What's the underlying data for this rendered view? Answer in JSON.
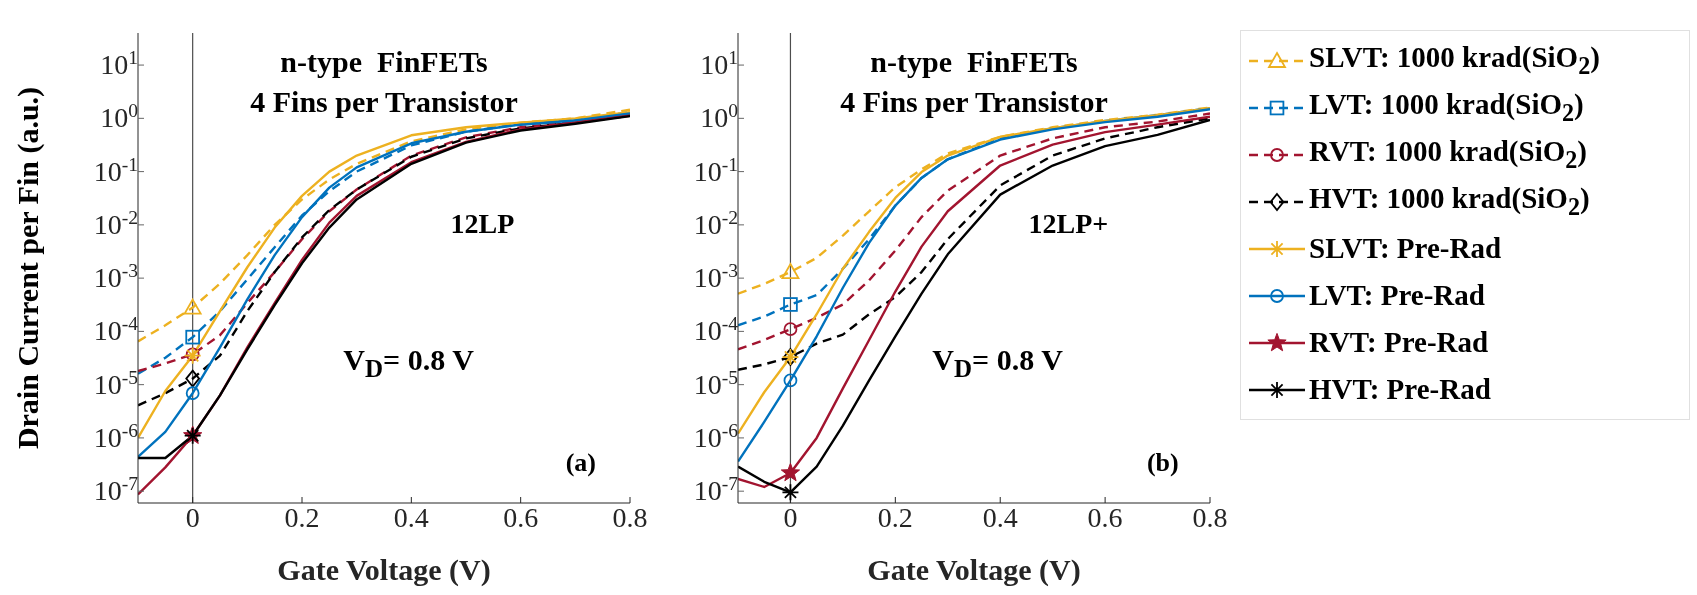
{
  "chart_data": [
    {
      "type": "line",
      "xlabel": "Gate Voltage (V)",
      "ylabel": "Drain Current per Fin (a.u.)",
      "log": "y",
      "legend": "right",
      "annotations": [
        "n-type  FinFETs",
        "4 Fins per Transistor",
        "12LP",
        "V$_{D}$= 0.8 V",
        "(a)"
      ],
      "x": [
        -0.1,
        -0.05,
        0,
        0.05,
        0.1,
        0.15,
        0.2,
        0.25,
        0.3,
        0.4,
        0.5,
        0.6,
        0.7,
        0.8
      ],
      "xlim": [
        -0.1,
        0.8
      ],
      "xticks": [
        0,
        0.2,
        0.4,
        0.6,
        0.8
      ],
      "ylim": [
        6e-08,
        40
      ],
      "yticks": [
        {
          "value": 1e-07,
          "label": "10$^{-7}$"
        },
        {
          "value": 1e-06,
          "label": "10$^{-6}$"
        },
        {
          "value": 1e-05,
          "label": "10$^{-5}$"
        },
        {
          "value": 0.0001,
          "label": "10$^{-4}$"
        },
        {
          "value": 0.001,
          "label": "10$^{-3}$"
        },
        {
          "value": 0.01,
          "label": "10$^{-2}$"
        },
        {
          "value": 0.1,
          "label": "10$^{-1}$"
        },
        {
          "value": 1,
          "label": "10$^{0}$"
        },
        {
          "value": 10,
          "label": "10$^{1}$"
        }
      ],
      "ref_lines": [
        {
          "axis": "x",
          "value": 0,
          "color": "#4d4d4d"
        }
      ],
      "series": [
        {
          "name": "SLVT: 1000 krad(SiO$_{2}$)",
          "color": "#edb120",
          "line_style": "dashed",
          "values": [
            6.5e-05,
            0.00013,
            0.00028,
            0.00079,
            0.0027,
            0.01,
            0.03,
            0.071,
            0.14,
            0.37,
            0.62,
            0.83,
            1.0,
            1.45
          ]
        },
        {
          "name": "LVT: 1000 krad(SiO$_{2}$)",
          "color": "#0072bd",
          "line_style": "dashed",
          "values": [
            1.6e-05,
            3.2e-05,
            7.8e-05,
            0.00024,
            0.00095,
            0.0038,
            0.015,
            0.043,
            0.1,
            0.31,
            0.56,
            0.78,
            0.95,
            1.3
          ]
        },
        {
          "name": "RVT: 1000 krad(SiO$_{2}$)",
          "color": "#a2142f",
          "line_style": "dashed",
          "values": [
            1.8e-05,
            2.5e-05,
            3.7e-05,
            8.5e-05,
            0.00034,
            0.0013,
            0.0054,
            0.018,
            0.046,
            0.2,
            0.44,
            0.68,
            0.87,
            1.17
          ]
        },
        {
          "name": "HVT: 1000 krad(SiO$_{2}$)",
          "color": "#000000",
          "line_style": "dashed",
          "values": [
            4.1e-06,
            6.9e-06,
            1.3e-05,
            3.5e-05,
            0.00024,
            0.0013,
            0.0058,
            0.019,
            0.046,
            0.19,
            0.42,
            0.65,
            0.83,
            1.12
          ]
        },
        {
          "name": "SLVT: Pre-Rad",
          "color": "#edb120",
          "line_style": "solid",
          "values": [
            1e-06,
            7.6e-06,
            3.5e-05,
            0.00024,
            0.0016,
            0.0089,
            0.035,
            0.1,
            0.2,
            0.48,
            0.68,
            0.83,
            1.0,
            1.3
          ]
        },
        {
          "name": "LVT: Pre-Rad",
          "color": "#0072bd",
          "line_style": "solid",
          "values": [
            4.4e-07,
            1.3e-06,
            6.9e-06,
            5e-05,
            0.0004,
            0.0027,
            0.014,
            0.05,
            0.12,
            0.34,
            0.56,
            0.76,
            0.91,
            1.23
          ]
        },
        {
          "name": "RVT: Pre-Rad",
          "color": "#a2142f",
          "line_style": "solid",
          "values": [
            8.7e-08,
            2.8e-07,
            1.1e-06,
            6.3e-06,
            5e-05,
            0.00034,
            0.0022,
            0.011,
            0.035,
            0.15,
            0.36,
            0.62,
            0.83,
            1.12
          ]
        },
        {
          "name": "HVT: Pre-Rad",
          "color": "#000000",
          "line_style": "solid",
          "values": [
            4.2e-07,
            4.2e-07,
            1.1e-06,
            6.3e-06,
            4.6e-05,
            0.00031,
            0.0019,
            0.0089,
            0.03,
            0.14,
            0.35,
            0.59,
            0.79,
            1.1
          ]
        },
        {
          "type": "scatter",
          "color": "#edb120",
          "marker": "triangle",
          "values": [
            null,
            null,
            0.00028,
            null,
            null,
            null,
            null,
            null,
            null,
            null,
            null,
            null,
            null,
            null
          ]
        },
        {
          "type": "scatter",
          "color": "#0072bd",
          "marker": "square",
          "values": [
            null,
            null,
            7.8e-05,
            null,
            null,
            null,
            null,
            null,
            null,
            null,
            null,
            null,
            null,
            null
          ]
        },
        {
          "type": "scatter",
          "color": "#a2142f",
          "marker": "circle",
          "values": [
            null,
            null,
            3.7e-05,
            null,
            null,
            null,
            null,
            null,
            null,
            null,
            null,
            null,
            null,
            null
          ]
        },
        {
          "type": "scatter",
          "color": "#000000",
          "marker": "diamond",
          "values": [
            null,
            null,
            1.3e-05,
            null,
            null,
            null,
            null,
            null,
            null,
            null,
            null,
            null,
            null,
            null
          ]
        },
        {
          "type": "scatter",
          "color": "#edb120",
          "marker": "cross",
          "values": [
            null,
            null,
            3.5e-05,
            null,
            null,
            null,
            null,
            null,
            null,
            null,
            null,
            null,
            null,
            null
          ]
        },
        {
          "type": "scatter",
          "color": "#0072bd",
          "marker": "circle",
          "values": [
            null,
            null,
            6.9e-06,
            null,
            null,
            null,
            null,
            null,
            null,
            null,
            null,
            null,
            null,
            null
          ]
        },
        {
          "type": "scatter",
          "color": "#a2142f",
          "marker": "star",
          "values": [
            null,
            null,
            1.1e-06,
            null,
            null,
            null,
            null,
            null,
            null,
            null,
            null,
            null,
            null,
            null
          ]
        },
        {
          "type": "scatter",
          "color": "#000000",
          "marker": "cross",
          "values": [
            null,
            null,
            1.1e-06,
            null,
            null,
            null,
            null,
            null,
            null,
            null,
            null,
            null,
            null,
            null
          ]
        }
      ]
    },
    {
      "type": "line",
      "xlabel": "Gate Voltage (V)",
      "log": "y",
      "annotations": [
        "n-type  FinFETs",
        "4 Fins per Transistor",
        "12LP+",
        "V$_{D}$= 0.8 V",
        "(b)"
      ],
      "x": [
        -0.1,
        -0.05,
        0,
        0.05,
        0.1,
        0.15,
        0.2,
        0.25,
        0.3,
        0.4,
        0.5,
        0.6,
        0.7,
        0.8
      ],
      "xlim": [
        -0.1,
        0.8
      ],
      "xticks": [
        0,
        0.2,
        0.4,
        0.6,
        0.8
      ],
      "ylim": [
        6e-08,
        40
      ],
      "yticks": [
        {
          "value": 1e-07,
          "label": "10$^{-7}$"
        },
        {
          "value": 1e-06,
          "label": "10$^{-6}$"
        },
        {
          "value": 1e-05,
          "label": "10$^{-5}$"
        },
        {
          "value": 0.0001,
          "label": "10$^{-4}$"
        },
        {
          "value": 0.001,
          "label": "10$^{-3}$"
        },
        {
          "value": 0.01,
          "label": "10$^{-2}$"
        },
        {
          "value": 0.1,
          "label": "10$^{-1}$"
        },
        {
          "value": 1,
          "label": "10$^{0}$"
        },
        {
          "value": 10,
          "label": "10$^{1}$"
        }
      ],
      "ref_lines": [
        {
          "axis": "x",
          "value": 0,
          "color": "#4d4d4d"
        }
      ],
      "series": [
        {
          "color": "#edb120",
          "line_style": "dashed",
          "values": [
            0.00051,
            0.00078,
            0.0013,
            0.0024,
            0.0063,
            0.018,
            0.051,
            0.11,
            0.22,
            0.45,
            0.68,
            0.93,
            1.17,
            1.6
          ]
        },
        {
          "color": "#0072bd",
          "line_style": "dashed",
          "values": [
            0.00013,
            0.00019,
            0.00032,
            0.00048,
            0.0015,
            0.0054,
            0.023,
            0.076,
            0.17,
            0.42,
            0.65,
            0.89,
            1.15,
            1.55
          ]
        },
        {
          "color": "#a2142f",
          "line_style": "dashed",
          "values": [
            4.6e-05,
            6.9e-05,
            0.00011,
            0.00018,
            0.00032,
            0.00091,
            0.0033,
            0.014,
            0.044,
            0.2,
            0.42,
            0.68,
            0.87,
            1.23
          ]
        },
        {
          "color": "#000000",
          "line_style": "dashed",
          "values": [
            1.9e-05,
            2.4e-05,
            3.3e-05,
            5.9e-05,
            8.7e-05,
            0.00021,
            0.00044,
            0.0013,
            0.0054,
            0.055,
            0.2,
            0.42,
            0.68,
            1.0
          ]
        },
        {
          "color": "#edb120",
          "line_style": "solid",
          "values": [
            1.2e-06,
            7.2e-06,
            3.3e-05,
            0.00021,
            0.0015,
            0.0074,
            0.032,
            0.098,
            0.2,
            0.45,
            0.65,
            0.89,
            1.15,
            1.55
          ]
        },
        {
          "color": "#0072bd",
          "line_style": "solid",
          "values": [
            3.6e-07,
            2e-06,
            1.2e-05,
            8.1e-05,
            0.00066,
            0.0046,
            0.023,
            0.076,
            0.17,
            0.4,
            0.62,
            0.85,
            1.07,
            1.48
          ]
        },
        {
          "color": "#a2142f",
          "line_style": "solid",
          "values": [
            1.7e-07,
            1.2e-07,
            2.2e-07,
            1e-06,
            8.5e-06,
            6.9e-05,
            0.00056,
            0.0039,
            0.018,
            0.13,
            0.32,
            0.55,
            0.76,
            1.07
          ]
        },
        {
          "color": "#000000",
          "line_style": "solid",
          "values": [
            2.9e-07,
            1.5e-07,
            9.5e-08,
            2.9e-07,
            1.7e-06,
            1.2e-05,
            8.1e-05,
            0.00051,
            0.0028,
            0.037,
            0.13,
            0.3,
            0.49,
            0.93
          ]
        },
        {
          "type": "scatter",
          "color": "#edb120",
          "marker": "triangle",
          "values": [
            null,
            null,
            0.0013,
            null,
            null,
            null,
            null,
            null,
            null,
            null,
            null,
            null,
            null,
            null
          ]
        },
        {
          "type": "scatter",
          "color": "#0072bd",
          "marker": "square",
          "values": [
            null,
            null,
            0.00032,
            null,
            null,
            null,
            null,
            null,
            null,
            null,
            null,
            null,
            null,
            null
          ]
        },
        {
          "type": "scatter",
          "color": "#a2142f",
          "marker": "circle",
          "values": [
            null,
            null,
            0.00011,
            null,
            null,
            null,
            null,
            null,
            null,
            null,
            null,
            null,
            null,
            null
          ]
        },
        {
          "type": "scatter",
          "color": "#000000",
          "marker": "diamond",
          "values": [
            null,
            null,
            3.3e-05,
            null,
            null,
            null,
            null,
            null,
            null,
            null,
            null,
            null,
            null,
            null
          ]
        },
        {
          "type": "scatter",
          "color": "#edb120",
          "marker": "cross",
          "values": [
            null,
            null,
            3.3e-05,
            null,
            null,
            null,
            null,
            null,
            null,
            null,
            null,
            null,
            null,
            null
          ]
        },
        {
          "type": "scatter",
          "color": "#0072bd",
          "marker": "circle",
          "values": [
            null,
            null,
            1.2e-05,
            null,
            null,
            null,
            null,
            null,
            null,
            null,
            null,
            null,
            null,
            null
          ]
        },
        {
          "type": "scatter",
          "color": "#a2142f",
          "marker": "star",
          "values": [
            null,
            null,
            2.2e-07,
            null,
            null,
            null,
            null,
            null,
            null,
            null,
            null,
            null,
            null,
            null
          ]
        },
        {
          "type": "scatter",
          "color": "#000000",
          "marker": "cross",
          "values": [
            null,
            null,
            9.5e-08,
            null,
            null,
            null,
            null,
            null,
            null,
            null,
            null,
            null,
            null,
            null
          ]
        }
      ]
    }
  ]
}
